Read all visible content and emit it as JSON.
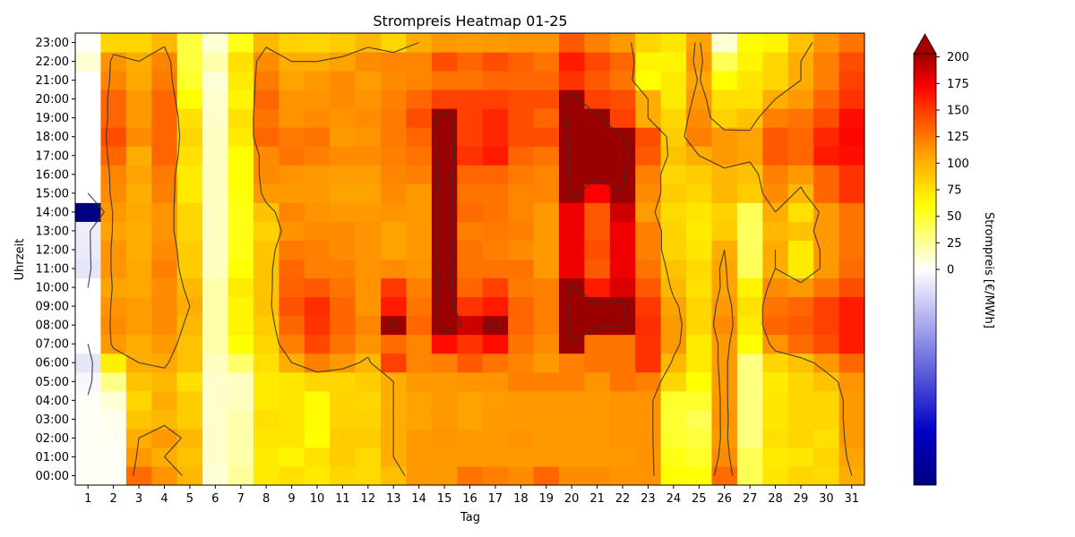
{
  "chart_data": {
    "type": "heatmap",
    "title": "Strompreis Heatmap 01-25",
    "xlabel": "Tag",
    "ylabel": "Uhrzeit",
    "colorbar_label": "Strompreis [€/MWh]",
    "x": [
      1,
      2,
      3,
      4,
      5,
      6,
      7,
      8,
      9,
      10,
      11,
      12,
      13,
      14,
      15,
      16,
      17,
      18,
      19,
      20,
      21,
      22,
      23,
      24,
      25,
      26,
      27,
      28,
      29,
      30,
      31
    ],
    "y": [
      "00:00",
      "01:00",
      "02:00",
      "03:00",
      "04:00",
      "05:00",
      "06:00",
      "07:00",
      "08:00",
      "09:00",
      "10:00",
      "11:00",
      "12:00",
      "13:00",
      "14:00",
      "15:00",
      "16:00",
      "17:00",
      "18:00",
      "19:00",
      "20:00",
      "21:00",
      "22:00",
      "23:00"
    ],
    "values": [
      [
        2,
        2,
        128,
        112,
        95,
        10,
        24,
        70,
        75,
        70,
        80,
        78,
        92,
        110,
        110,
        125,
        120,
        115,
        130,
        115,
        115,
        112,
        112,
        60,
        58,
        128,
        40,
        72,
        80,
        78,
        100
      ],
      [
        2,
        2,
        110,
        100,
        90,
        12,
        20,
        70,
        65,
        74,
        85,
        78,
        100,
        110,
        110,
        110,
        110,
        110,
        110,
        110,
        110,
        110,
        112,
        55,
        50,
        115,
        40,
        70,
        72,
        80,
        105
      ],
      [
        2,
        3,
        100,
        110,
        95,
        12,
        20,
        72,
        72,
        60,
        85,
        85,
        100,
        110,
        112,
        110,
        110,
        112,
        110,
        110,
        110,
        112,
        112,
        50,
        45,
        110,
        30,
        75,
        80,
        75,
        110
      ],
      [
        2,
        5,
        88,
        95,
        85,
        12,
        20,
        75,
        72,
        62,
        82,
        82,
        100,
        105,
        110,
        105,
        110,
        110,
        110,
        110,
        110,
        112,
        112,
        48,
        40,
        112,
        30,
        72,
        80,
        80,
        110
      ],
      [
        2,
        10,
        80,
        100,
        85,
        12,
        15,
        70,
        72,
        62,
        82,
        80,
        100,
        105,
        110,
        105,
        108,
        110,
        110,
        110,
        110,
        112,
        112,
        50,
        50,
        110,
        30,
        72,
        80,
        80,
        110
      ],
      [
        -5,
        28,
        90,
        95,
        75,
        12,
        15,
        70,
        72,
        80,
        80,
        85,
        100,
        110,
        110,
        112,
        112,
        120,
        120,
        120,
        112,
        125,
        120,
        80,
        60,
        110,
        30,
        70,
        80,
        90,
        112
      ],
      [
        -15,
        68,
        100,
        102,
        90,
        15,
        35,
        75,
        100,
        120,
        110,
        95,
        145,
        118,
        120,
        135,
        125,
        118,
        110,
        120,
        125,
        125,
        150,
        95,
        70,
        110,
        30,
        80,
        90,
        110,
        130
      ],
      [
        0,
        110,
        100,
        110,
        90,
        20,
        60,
        80,
        120,
        142,
        125,
        112,
        128,
        118,
        165,
        150,
        165,
        125,
        115,
        200,
        125,
        125,
        150,
        110,
        70,
        110,
        60,
        112,
        128,
        140,
        160
      ],
      [
        0,
        115,
        108,
        115,
        95,
        20,
        65,
        85,
        130,
        150,
        130,
        118,
        210,
        130,
        230,
        185,
        210,
        130,
        120,
        210,
        205,
        210,
        152,
        110,
        80,
        115,
        70,
        130,
        135,
        145,
        160
      ],
      [
        0,
        112,
        108,
        115,
        100,
        20,
        65,
        90,
        138,
        152,
        130,
        112,
        160,
        125,
        230,
        150,
        160,
        130,
        120,
        210,
        205,
        205,
        148,
        105,
        80,
        110,
        75,
        125,
        130,
        145,
        160
      ],
      [
        0,
        105,
        102,
        115,
        95,
        20,
        70,
        90,
        132,
        135,
        125,
        112,
        148,
        120,
        230,
        130,
        145,
        122,
        120,
        205,
        160,
        180,
        135,
        95,
        75,
        105,
        65,
        115,
        110,
        125,
        140
      ],
      [
        -15,
        112,
        102,
        120,
        85,
        15,
        60,
        90,
        130,
        120,
        120,
        112,
        115,
        112,
        230,
        125,
        125,
        125,
        110,
        175,
        135,
        175,
        125,
        90,
        78,
        105,
        40,
        100,
        70,
        110,
        128
      ],
      [
        -12,
        112,
        100,
        115,
        85,
        15,
        55,
        88,
        122,
        120,
        115,
        112,
        105,
        110,
        230,
        125,
        120,
        115,
        110,
        175,
        140,
        175,
        120,
        82,
        72,
        100,
        38,
        100,
        70,
        110,
        125
      ],
      [
        -10,
        105,
        100,
        112,
        80,
        15,
        55,
        82,
        112,
        115,
        115,
        112,
        105,
        110,
        230,
        120,
        122,
        120,
        110,
        175,
        135,
        175,
        120,
        82,
        70,
        85,
        38,
        95,
        90,
        110,
        125
      ],
      [
        -200,
        110,
        102,
        112,
        80,
        15,
        55,
        90,
        118,
        112,
        110,
        110,
        112,
        110,
        230,
        128,
        125,
        118,
        110,
        175,
        135,
        185,
        108,
        78,
        72,
        82,
        40,
        100,
        75,
        110,
        125
      ],
      [
        0,
        115,
        100,
        120,
        70,
        15,
        58,
        110,
        110,
        110,
        105,
        105,
        115,
        110,
        230,
        125,
        125,
        118,
        118,
        210,
        170,
        200,
        115,
        85,
        80,
        95,
        85,
        115,
        95,
        130,
        150
      ],
      [
        0,
        118,
        105,
        122,
        70,
        15,
        60,
        115,
        112,
        110,
        108,
        108,
        118,
        120,
        230,
        130,
        130,
        122,
        118,
        210,
        210,
        205,
        120,
        80,
        85,
        95,
        90,
        120,
        110,
        130,
        150
      ],
      [
        0,
        130,
        100,
        130,
        75,
        15,
        60,
        115,
        125,
        120,
        115,
        115,
        120,
        125,
        230,
        150,
        160,
        130,
        125,
        210,
        210,
        230,
        135,
        90,
        100,
        110,
        105,
        135,
        130,
        160,
        165
      ],
      [
        0,
        140,
        115,
        130,
        80,
        15,
        70,
        130,
        122,
        125,
        110,
        112,
        122,
        130,
        230,
        145,
        155,
        140,
        140,
        210,
        205,
        200,
        140,
        85,
        120,
        110,
        105,
        135,
        130,
        155,
        168
      ],
      [
        0,
        130,
        110,
        130,
        75,
        12,
        75,
        125,
        112,
        115,
        112,
        115,
        122,
        140,
        230,
        145,
        155,
        140,
        130,
        220,
        210,
        145,
        100,
        80,
        115,
        82,
        90,
        120,
        125,
        140,
        165
      ],
      [
        0,
        130,
        110,
        130,
        60,
        12,
        65,
        130,
        112,
        112,
        115,
        112,
        120,
        130,
        145,
        145,
        145,
        140,
        140,
        220,
        145,
        140,
        100,
        70,
        110,
        75,
        75,
        100,
        110,
        130,
        150
      ],
      [
        0,
        118,
        102,
        122,
        50,
        10,
        70,
        122,
        105,
        110,
        115,
        108,
        115,
        118,
        125,
        125,
        130,
        130,
        130,
        150,
        135,
        125,
        60,
        70,
        102,
        60,
        72,
        80,
        100,
        120,
        145
      ],
      [
        10,
        112,
        100,
        118,
        45,
        20,
        75,
        115,
        100,
        100,
        105,
        115,
        118,
        118,
        140,
        130,
        140,
        132,
        125,
        160,
        142,
        130,
        65,
        65,
        110,
        40,
        65,
        80,
        100,
        120,
        140
      ],
      [
        2,
        80,
        80,
        95,
        45,
        10,
        55,
        95,
        82,
        80,
        85,
        95,
        80,
        100,
        110,
        108,
        110,
        112,
        112,
        135,
        120,
        110,
        80,
        72,
        105,
        10,
        62,
        65,
        90,
        112,
        125
      ]
    ],
    "zlim": [
      -200,
      200
    ],
    "colorbar_ticks": [
      0,
      25,
      50,
      75,
      100,
      125,
      150,
      175,
      200
    ],
    "contour_levels": [
      0,
      100,
      200
    ],
    "colormap": [
      "#000080",
      "#0000c8",
      "#ffffff",
      "#ffff00",
      "#ff9900",
      "#ff0000",
      "#9a0000"
    ],
    "colorbar_extend_color": "#a00000",
    "grid": false,
    "legend": "none"
  }
}
